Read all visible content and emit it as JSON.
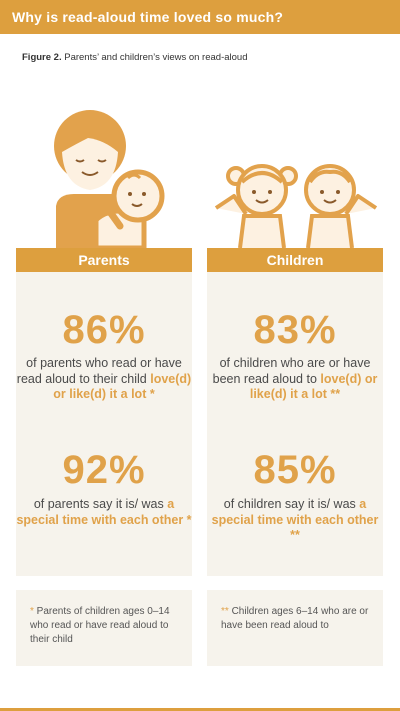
{
  "header": {
    "title": "Why is read-aloud time loved so much?"
  },
  "figure": {
    "label": "Figure 2.",
    "caption": "Parents’ and children’s views on read-aloud"
  },
  "columns": {
    "parents": {
      "title": "Parents",
      "stat1": {
        "value": "86%",
        "text_pre": "of parents who read or have read aloud to their child ",
        "text_highlight": "love(d) or like(d) it a lot *",
        "text_post": ""
      },
      "stat2": {
        "value": "92%",
        "text_pre": "of parents say it is/ was ",
        "text_highlight": "a special time with each other *",
        "text_post": ""
      },
      "note": {
        "marker": "*",
        "text": " Parents of children ages 0–14 who read or have read aloud to their child"
      }
    },
    "children": {
      "title": "Children",
      "stat1": {
        "value": "83%",
        "text_pre": "of children who are or have been read aloud to ",
        "text_highlight": "love(d) or like(d) it a lot **",
        "text_post": ""
      },
      "stat2": {
        "value": "85%",
        "text_pre": "of children say it is/ was ",
        "text_highlight": "a special time with each other **",
        "text_post": ""
      },
      "note": {
        "marker": "**",
        "text": " Children ages 6–14 who are or have been read aloud to"
      }
    }
  },
  "colors": {
    "accent": "#dd9f3e",
    "panel": "#f6f3ec",
    "highlight": "#e0a24a",
    "text": "#4a4a4a"
  }
}
